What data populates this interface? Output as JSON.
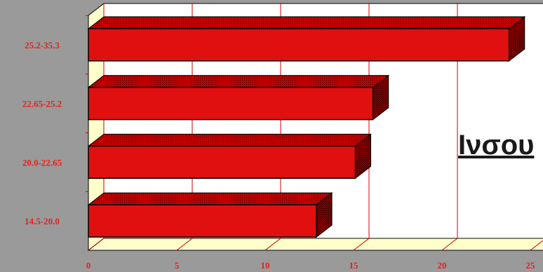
{
  "chart_data": {
    "type": "bar",
    "orientation": "horizontal",
    "style": "3d",
    "categories": [
      "14.5-20.0",
      "20.0-22.65",
      "22.65-25.2",
      "25.2-35.3"
    ],
    "values": [
      12.9,
      15.1,
      16.1,
      23.8
    ],
    "xlim": [
      0,
      25
    ],
    "xticks": [
      "0",
      "5",
      "10",
      "15",
      "20",
      "25"
    ],
    "grid": true,
    "legend": "none",
    "colors": {
      "bar": "#e01010",
      "background": "#9a9a9a",
      "plot": "#ffffff",
      "wall": "#ffffcc",
      "label": "#e8201c"
    }
  },
  "overlay_text": "Ινσου"
}
